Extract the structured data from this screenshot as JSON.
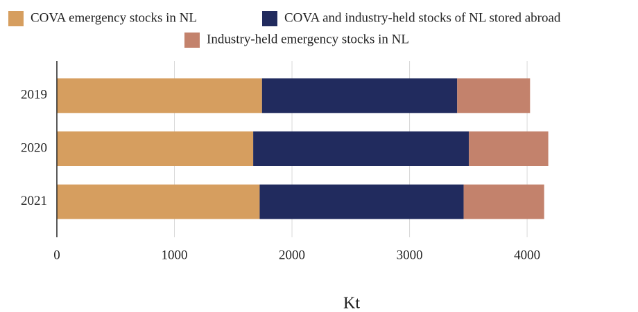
{
  "chart_data": {
    "type": "stacked_barh",
    "categories": [
      "2019",
      "2020",
      "2021"
    ],
    "series": [
      {
        "name": "COVA emergency stocks in NL",
        "color": "#d69e5f",
        "values": [
          1745,
          1670,
          1725
        ]
      },
      {
        "name": "COVA and industry-held stocks of NL stored abroad",
        "color": "#212b5e",
        "values": [
          1660,
          1835,
          1735
        ]
      },
      {
        "name": "Industry-held emergency stocks in NL",
        "color": "#c3826c",
        "values": [
          620,
          675,
          685
        ]
      }
    ],
    "xlabel": "Kt",
    "xlim": [
      0,
      4200
    ],
    "xticks": [
      0,
      1000,
      2000,
      3000,
      4000
    ],
    "grid": true,
    "legend": "top"
  }
}
